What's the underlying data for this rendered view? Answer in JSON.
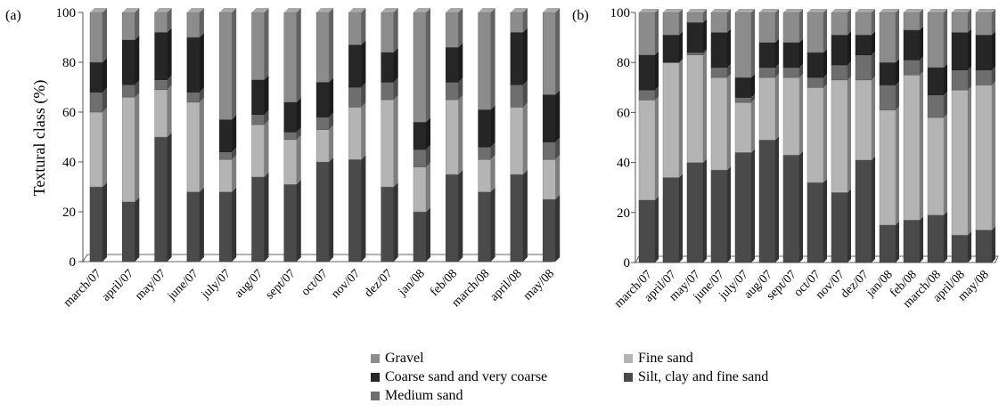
{
  "chart_data": [
    {
      "type": "bar",
      "stacked": true,
      "panel_label": "(a)",
      "ylabel": "Textural class (%)",
      "ylim": [
        0,
        100
      ],
      "yticks": [
        "0",
        "20",
        "40",
        "60",
        "80",
        "100"
      ],
      "categories": [
        "march/07",
        "april/07",
        "may/07",
        "june/07",
        "july/07",
        "aug/07",
        "sept/07",
        "oct/07",
        "nov/07",
        "dez/07",
        "jan/08",
        "feb/08",
        "march/08",
        "april/08",
        "may/08"
      ],
      "series": [
        {
          "name": "Silt, clay and fine sand",
          "values": [
            30,
            24,
            50,
            28,
            28,
            34,
            31,
            40,
            41,
            30,
            20,
            35,
            28,
            35,
            25
          ]
        },
        {
          "name": "Fine sand",
          "values": [
            30,
            42,
            19,
            36,
            13,
            21,
            18,
            13,
            21,
            35,
            18,
            30,
            13,
            27,
            16
          ]
        },
        {
          "name": "Medium sand",
          "values": [
            8,
            5,
            4,
            4,
            3,
            4,
            3,
            5,
            8,
            7,
            7,
            7,
            5,
            9,
            7
          ]
        },
        {
          "name": "Coarse sand and very coarse",
          "values": [
            12,
            18,
            19,
            22,
            13,
            14,
            12,
            14,
            17,
            12,
            11,
            14,
            15,
            21,
            19
          ]
        },
        {
          "name": "Gravel",
          "values": [
            20,
            11,
            8,
            10,
            43,
            27,
            36,
            28,
            13,
            16,
            44,
            14,
            39,
            8,
            33
          ]
        }
      ]
    },
    {
      "type": "bar",
      "stacked": true,
      "panel_label": "(b)",
      "ylabel": "",
      "ylim": [
        0,
        100
      ],
      "yticks": [
        "0",
        "20",
        "40",
        "60",
        "80",
        "100"
      ],
      "categories": [
        "march/07",
        "april/07",
        "may/07",
        "june/07",
        "july/07",
        "aug/07",
        "sept/07",
        "oct/07",
        "nov/07",
        "dez/07",
        "jan/08",
        "feb/08",
        "march/08",
        "april/08",
        "may/08"
      ],
      "series": [
        {
          "name": "Silt, clay and fine sand",
          "values": [
            25,
            34,
            40,
            37,
            44,
            49,
            43,
            32,
            28,
            41,
            15,
            17,
            19,
            11,
            13
          ]
        },
        {
          "name": "Fine sand",
          "values": [
            40,
            46,
            43,
            37,
            20,
            25,
            31,
            38,
            45,
            32,
            46,
            58,
            39,
            58,
            58
          ]
        },
        {
          "name": "Medium sand",
          "values": [
            4,
            0,
            1,
            4,
            2,
            4,
            4,
            4,
            6,
            10,
            10,
            6,
            9,
            8,
            6
          ]
        },
        {
          "name": "Coarse sand and very coarse",
          "values": [
            14,
            11,
            12,
            14,
            8,
            10,
            10,
            10,
            12,
            8,
            9,
            12,
            11,
            15,
            14
          ]
        },
        {
          "name": "Gravel",
          "values": [
            17,
            9,
            4,
            8,
            26,
            12,
            12,
            16,
            9,
            9,
            20,
            7,
            22,
            8,
            9
          ]
        }
      ]
    }
  ],
  "legend": {
    "items": [
      {
        "label": "Gravel",
        "color": "#8c8c8c"
      },
      {
        "label": "Fine sand",
        "color": "#b4b4b4"
      },
      {
        "label": "Coarse sand and very coarse",
        "color": "#262626"
      },
      {
        "label": "Silt, clay and fine sand",
        "color": "#4a4a4a"
      },
      {
        "label": "Medium sand",
        "color": "#6e6e6e"
      }
    ]
  },
  "colors": {
    "Silt, clay and fine sand": "#4a4a4a",
    "Fine sand": "#b4b4b4",
    "Medium sand": "#6e6e6e",
    "Coarse sand and very coarse": "#262626",
    "Gravel": "#8c8c8c"
  }
}
